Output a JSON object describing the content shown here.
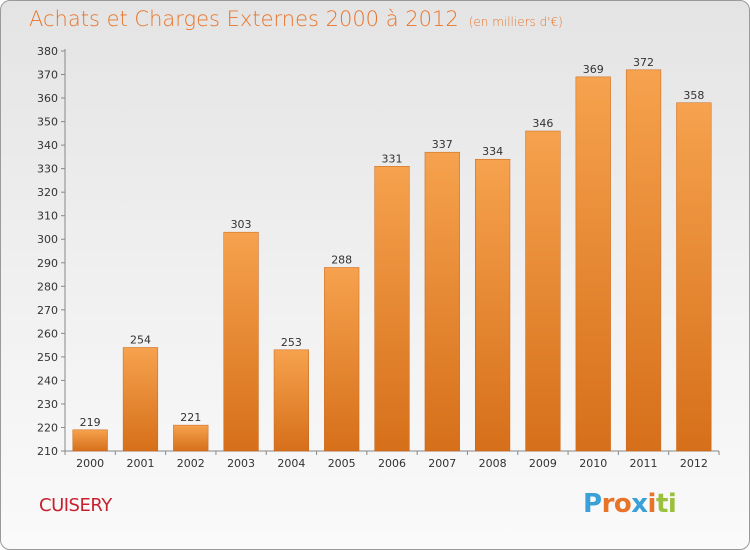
{
  "header": {
    "title": "Achats et Charges Externes 2000 à 2012",
    "subtitle": "(en milliers d'€)"
  },
  "footer": {
    "commune": "CUISERY",
    "logo_letters": [
      "P",
      "r",
      "o",
      "x",
      "i",
      "t",
      "i"
    ],
    "logo_colors": [
      "#3aa0d8",
      "#e8742a",
      "#e8742a",
      "#3aa0d8",
      "#e8742a",
      "#9bc13c",
      "#9bc13c"
    ]
  },
  "chart_data": {
    "type": "bar",
    "title": "Achats et Charges Externes 2000 à 2012",
    "subtitle": "(en milliers d'€)",
    "categories": [
      "2000",
      "2001",
      "2002",
      "2003",
      "2004",
      "2005",
      "2006",
      "2007",
      "2008",
      "2009",
      "2010",
      "2011",
      "2012"
    ],
    "values": [
      219,
      254,
      221,
      303,
      253,
      288,
      331,
      337,
      334,
      346,
      369,
      372,
      358
    ],
    "ylim": [
      210,
      380
    ],
    "ytick_step": 10,
    "grid": false,
    "bar_color_top": "#f6a24e",
    "bar_color_bottom": "#d66f1a"
  }
}
